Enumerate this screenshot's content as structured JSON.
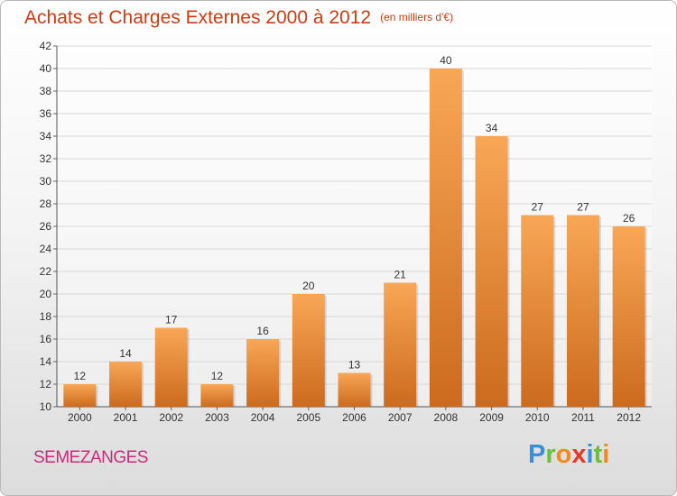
{
  "header": {
    "title": "Achats et Charges Externes 2000 à 2012",
    "unit": "(en milliers d'€)"
  },
  "footer": {
    "location": "SEMEZANGES",
    "brand_letters": [
      "P",
      "r",
      "o",
      "x",
      "i",
      "t",
      "i"
    ],
    "brand_colors": [
      "#3a8fd6",
      "#6bbf3a",
      "#f08a1c",
      "#e03a2a",
      "#3a8fd6",
      "#6bbf3a",
      "#f08a1c"
    ]
  },
  "colors": {
    "bar_top": "#f8a756",
    "bar_bottom": "#cc6a1d",
    "title": "#d03a10",
    "location": "#cc2b7a",
    "grid": "#d8d8d8"
  },
  "chart_data": {
    "type": "bar",
    "title": "Achats et Charges Externes 2000 à 2012",
    "subtitle": "(en milliers d'€)",
    "xlabel": "",
    "ylabel": "",
    "categories": [
      "2000",
      "2001",
      "2002",
      "2003",
      "2004",
      "2005",
      "2006",
      "2007",
      "2008",
      "2009",
      "2010",
      "2011",
      "2012"
    ],
    "values": [
      12,
      14,
      17,
      12,
      16,
      20,
      13,
      21,
      40,
      34,
      27,
      27,
      26
    ],
    "ylim": [
      10,
      42
    ],
    "yticks": [
      10,
      12,
      14,
      16,
      18,
      20,
      22,
      24,
      26,
      28,
      30,
      32,
      34,
      36,
      38,
      40,
      42
    ],
    "grid": true,
    "legend": "none"
  }
}
